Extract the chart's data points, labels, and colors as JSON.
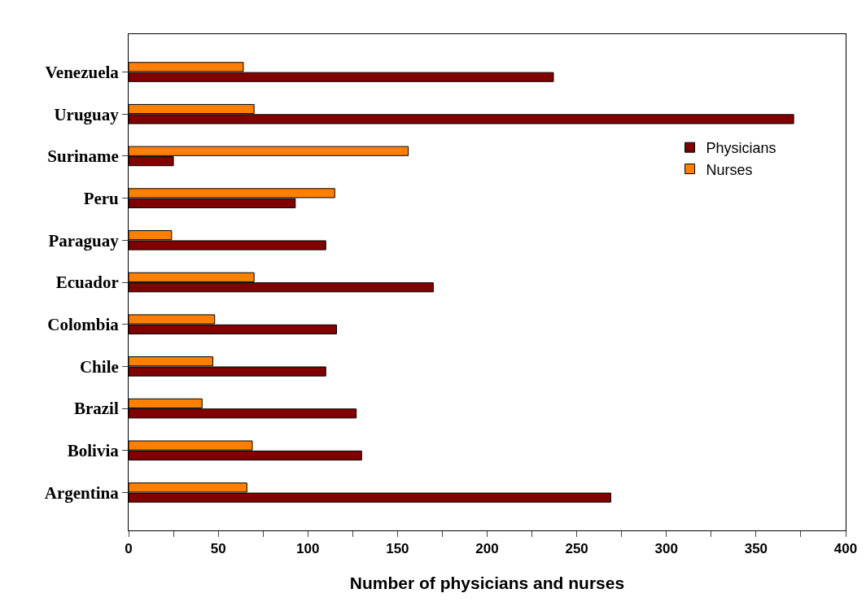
{
  "chart_data": {
    "type": "bar",
    "orientation": "horizontal",
    "xlabel": "Number of physicians and nurses",
    "categories": [
      "Venezuela",
      "Uruguay",
      "Suriname",
      "Peru",
      "Paraguay",
      "Ecuador",
      "Colombia",
      "Chile",
      "Brazil",
      "Bolivia",
      "Argentina"
    ],
    "series": [
      {
        "name": "Physicians",
        "color": "#800000",
        "values": [
          237,
          371,
          25,
          93,
          110,
          170,
          116,
          110,
          127,
          130,
          269
        ]
      },
      {
        "name": "Nurses",
        "color": "#ff8000",
        "values": [
          64,
          70,
          156,
          115,
          24,
          70,
          48,
          47,
          41,
          69,
          66
        ]
      }
    ],
    "xlim": [
      0,
      400
    ],
    "xticks": [
      0,
      {
        "value": 25,
        "label": null
      },
      50,
      {
        "value": 75,
        "label": null
      },
      100,
      {
        "value": 125,
        "label": null
      },
      150,
      {
        "value": 175,
        "label": null
      },
      200,
      {
        "value": 225,
        "label": null
      },
      250,
      {
        "value": 275,
        "label": null
      },
      300,
      {
        "value": 325,
        "label": null
      },
      350,
      {
        "value": 375,
        "label": null
      },
      400
    ],
    "grid": false,
    "legend": "right"
  }
}
